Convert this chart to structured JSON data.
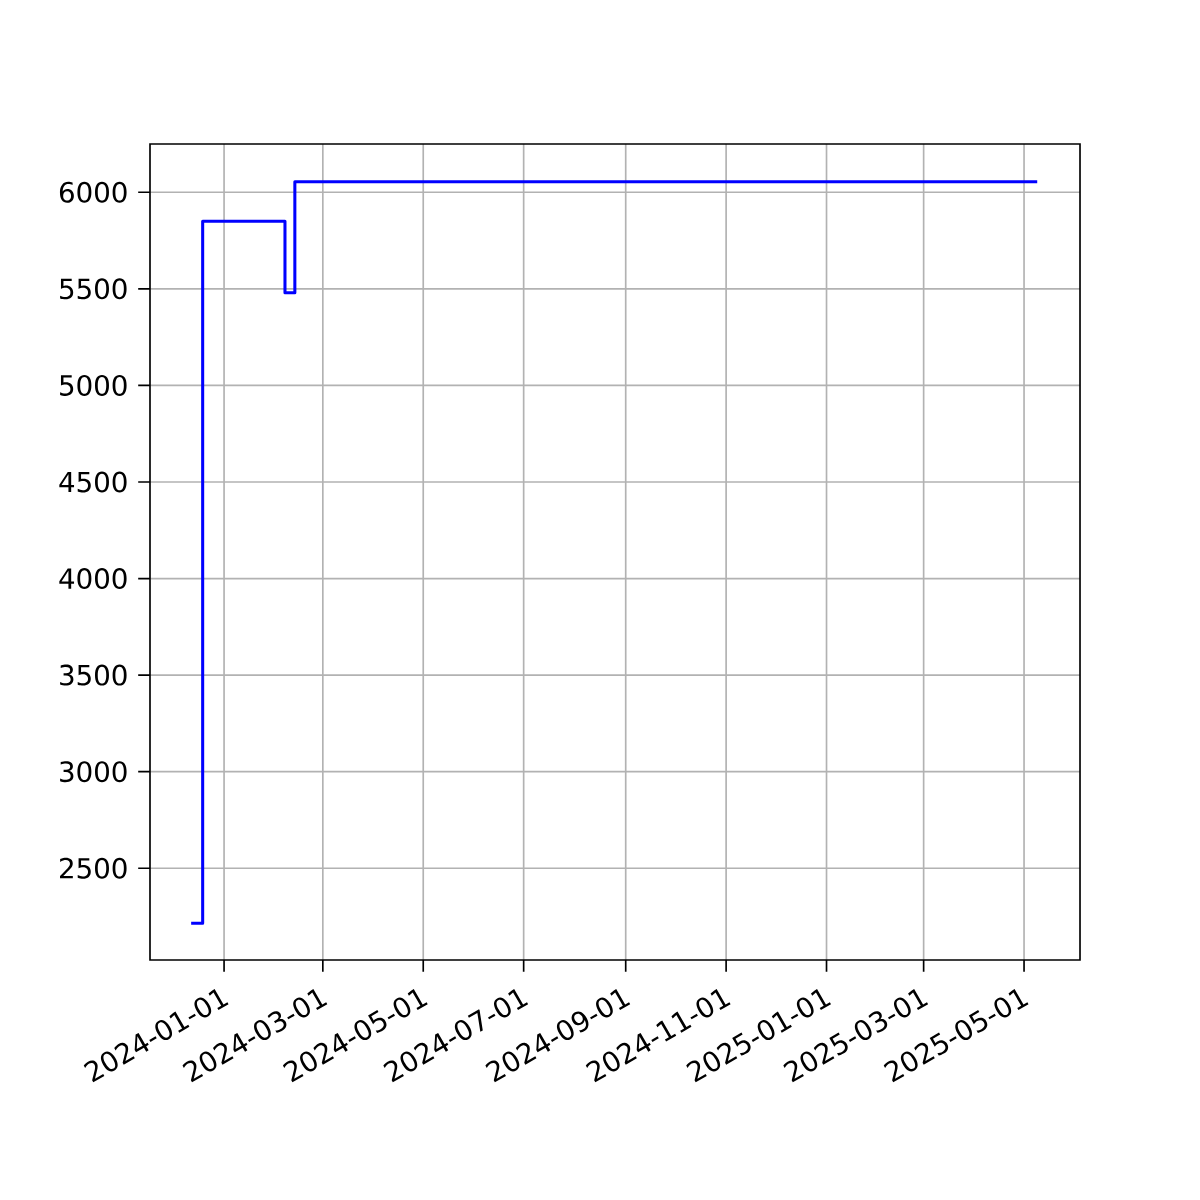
{
  "chart_data": {
    "type": "step",
    "x": [
      "2023-12-12",
      "2023-12-19",
      "2024-02-07",
      "2024-02-13",
      "2025-05-09"
    ],
    "series": [
      {
        "color": "#0000ff",
        "values": [
          2215,
          5850,
          5480,
          6055,
          6055
        ]
      }
    ],
    "xlim": [
      "2023-11-17",
      "2025-06-04"
    ],
    "xticks": [
      "2024-01-01",
      "2024-03-01",
      "2024-05-01",
      "2024-07-01",
      "2024-09-01",
      "2024-11-01",
      "2025-01-01",
      "2025-03-01",
      "2025-05-01"
    ],
    "ylim": [
      2025,
      6250
    ],
    "yticks": [
      2500,
      3000,
      3500,
      4000,
      4500,
      5000,
      5500,
      6000
    ],
    "grid": true
  }
}
